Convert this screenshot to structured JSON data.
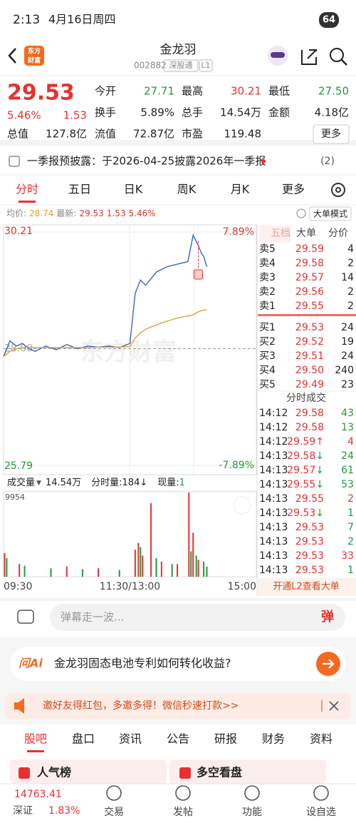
{
  "status_bar": {
    "time": "2:13",
    "date": "4月16日周四",
    "battery": "64"
  },
  "header": {
    "logo": [
      "东方",
      "财富"
    ],
    "title": "金龙羽",
    "code": "002882",
    "tag": "深股通",
    "level": "L1"
  },
  "quote": {
    "price": "29.53",
    "change_pct": "5.46%",
    "change": "1.53",
    "total_label": "总值",
    "total_value": "127.8亿",
    "more": "更多",
    "stats": [
      {
        "label": "今开",
        "value": "27.71",
        "color": "#1e9b3a"
      },
      {
        "label": "最高",
        "value": "30.21",
        "color": "#e8312f"
      },
      {
        "label": "最低",
        "value": "27.50",
        "color": "#1e9b3a"
      },
      {
        "label": "换手",
        "value": "5.89%",
        "color": "#222222"
      },
      {
        "label": "总手",
        "value": "14.54万",
        "color": "#222222"
      },
      {
        "label": "金额",
        "value": "4.18亿",
        "color": "#222222"
      },
      {
        "label": "流值",
        "value": "72.87亿",
        "color": "#222222"
      },
      {
        "label": "市盈",
        "value": "119.48",
        "color": "#222222"
      }
    ]
  },
  "notice": {
    "text": "一季报预披露：于2026-04-25披露2026年一季报",
    "count": "(2)"
  },
  "tabs": [
    "分时",
    "五日",
    "日K",
    "周K",
    "月K",
    "更多"
  ],
  "info": {
    "avg_label": "均价:",
    "avg": "28.74",
    "latest_label": "最新:",
    "latest": "29.53",
    "change": "1.53",
    "pct": "5.46%",
    "mode": "大单模式"
  },
  "watermark": "东方财富",
  "chart_data": [
    {
      "type": "line",
      "x": [
        "09:30",
        "09:36",
        "09:42",
        "09:48",
        "09:54",
        "10:00",
        "10:10",
        "10:20",
        "10:30",
        "10:40",
        "10:50",
        "11:00",
        "11:10",
        "11:20",
        "11:30",
        "13:05",
        "13:10",
        "13:15",
        "13:25",
        "13:35",
        "13:45",
        "13:55",
        "14:00",
        "14:05",
        "14:08",
        "14:10",
        "14:13"
      ],
      "series": [
        {
          "color": "#3a66c4",
          "values": [
            27.85,
            28.15,
            28.05,
            28.1,
            28.0,
            27.95,
            28.05,
            27.98,
            28.08,
            28.0,
            28.05,
            28.03,
            28.05,
            28.02,
            28.1,
            29.05,
            29.3,
            29.2,
            29.45,
            29.55,
            29.6,
            29.65,
            30.15,
            29.95,
            29.8,
            29.75,
            29.55
          ]
        },
        {
          "color": "#e0a030",
          "values": [
            27.85,
            27.95,
            28.0,
            28.02,
            28.03,
            28.02,
            28.02,
            28.02,
            28.02,
            28.02,
            28.02,
            28.03,
            28.03,
            28.03,
            28.04,
            28.2,
            28.3,
            28.37,
            28.45,
            28.52,
            28.58,
            28.62,
            28.64,
            28.7,
            28.72,
            28.73,
            28.74
          ]
        }
      ],
      "ylim": [
        25.79,
        30.21
      ],
      "yticks": [
        30.21,
        {
          "value": 28,
          "label": "28.00"
        },
        25.79
      ],
      "y2lim": [
        -7.89,
        7.89
      ],
      "y2ticks": [
        {
          "value": 7.89,
          "label": "7.89%"
        },
        {
          "value": -7.89,
          "label": "-7.89%"
        }
      ]
    },
    {
      "type": "bar",
      "title": "成交量",
      "total": "14.54万",
      "period_volume": "分时量:184↓",
      "current_label": "现量:",
      "current": "1",
      "series": [
        {
          "color": "#e8312f",
          "x": [
            "09:31",
            "09:45",
            "10:30",
            "11:00",
            "13:05",
            "13:08",
            "13:12",
            "13:20",
            "13:30",
            "13:45",
            "13:56",
            "14:00",
            "14:05"
          ],
          "values": [
            2800,
            1500,
            1200,
            1000,
            3200,
            4000,
            2500,
            8700,
            1800,
            1500,
            9954,
            5200,
            2000
          ]
        },
        {
          "color": "#1e9b3a",
          "x": [
            "09:33",
            "09:50",
            "10:15",
            "10:45",
            "11:20",
            "13:10",
            "13:25",
            "13:40",
            "13:58",
            "14:03",
            "14:10",
            "14:13"
          ],
          "values": [
            2200,
            1300,
            1000,
            900,
            800,
            3500,
            2200,
            1500,
            3000,
            2500,
            1800,
            1200
          ]
        }
      ],
      "ylim": [
        0,
        9954
      ],
      "yticks": [
        9954
      ],
      "xticks": [
        "09:30",
        "11:30/13:00",
        "15:00"
      ]
    }
  ],
  "order_book": {
    "tabs": [
      "五档",
      "大单",
      "分价"
    ],
    "sells": [
      [
        "卖5",
        "29.59",
        "4"
      ],
      [
        "卖4",
        "29.58",
        "2"
      ],
      [
        "卖3",
        "29.57",
        "14"
      ],
      [
        "卖2",
        "29.56",
        "2"
      ],
      [
        "卖1",
        "29.55",
        "2"
      ]
    ],
    "buys": [
      [
        "买1",
        "29.53",
        "24"
      ],
      [
        "买2",
        "29.52",
        "19"
      ],
      [
        "买3",
        "29.51",
        "24"
      ],
      [
        "买4",
        "29.50",
        "240"
      ],
      [
        "买5",
        "29.49",
        "23"
      ]
    ]
  },
  "trades": {
    "title": "分时成交",
    "rows": [
      {
        "time": "14:12",
        "price": "29.58",
        "arrow": "",
        "volume": "43",
        "color": "#1e9b3a"
      },
      {
        "time": "14:12",
        "price": "29.58",
        "arrow": "",
        "volume": "13",
        "color": "#1e9b3a"
      },
      {
        "time": "14:12",
        "price": "29.59",
        "arrow": "↑",
        "volume": "4",
        "color": "#e8312f"
      },
      {
        "time": "14:13",
        "price": "29.58",
        "arrow": "↓",
        "volume": "24",
        "color": "#1e9b3a"
      },
      {
        "time": "14:13",
        "price": "29.57",
        "arrow": "↓",
        "volume": "61",
        "color": "#1e9b3a"
      },
      {
        "time": "14:13",
        "price": "29.55",
        "arrow": "↓",
        "volume": "53",
        "color": "#1e9b3a"
      },
      {
        "time": "14:13",
        "price": "29.55",
        "arrow": "",
        "volume": "2",
        "color": "#e8312f"
      },
      {
        "time": "14:13",
        "price": "29.53",
        "arrow": "↓",
        "volume": "1",
        "color": "#1e9b3a"
      },
      {
        "time": "14:13",
        "price": "29.53",
        "arrow": "",
        "volume": "7",
        "color": "#1e9b3a"
      },
      {
        "time": "14:13",
        "price": "29.53",
        "arrow": "",
        "volume": "2",
        "color": "#1e9b3a"
      },
      {
        "time": "14:13",
        "price": "29.53",
        "arrow": "",
        "volume": "33",
        "color": "#e8312f"
      },
      {
        "time": "14:13",
        "price": "29.53",
        "arrow": "",
        "volume": "1",
        "color": "#1e9b3a"
      }
    ],
    "footer": "开通L2查看大单"
  },
  "comment": {
    "placeholder": "弹幕走一波...",
    "button": "弹"
  },
  "ai": {
    "logo": "问Ai",
    "question": "金龙羽固态电池专利如何转化收益?"
  },
  "promo": {
    "text": "邀好友得红包，多邀多得！微信秒速打款>>"
  },
  "section_tabs": [
    "股吧",
    "盘口",
    "资讯",
    "公告",
    "研报",
    "财务",
    "资料"
  ],
  "cards": [
    "人气榜",
    "多空看盘"
  ],
  "nav": {
    "index_value": "14763.41",
    "index_name": "深证",
    "index_change": "1.83%",
    "items": [
      "交易",
      "发帖",
      "功能",
      "设自选"
    ]
  }
}
